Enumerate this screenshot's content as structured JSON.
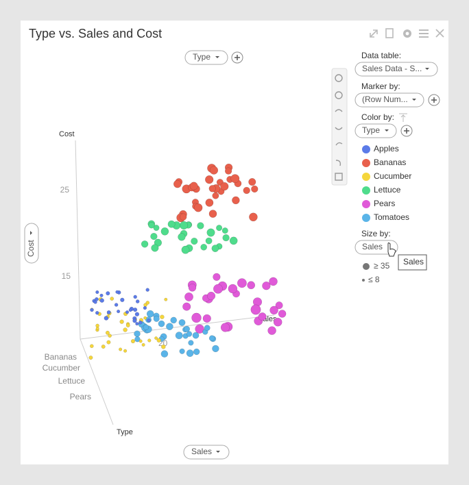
{
  "title": "Type vs. Sales and Cost",
  "axis_selectors": {
    "top": "Type",
    "left": "Cost",
    "bottom": "Sales"
  },
  "axis_labels": {
    "cost": "Cost",
    "sales": "Sales",
    "type": "Type"
  },
  "cost_ticks": [
    "25",
    "15"
  ],
  "sales_tick": "20",
  "type_ticks": [
    "Bananas",
    "Cucumber",
    "Lettuce",
    "Pears"
  ],
  "panel": {
    "data_table_label": "Data table:",
    "data_table_value": "Sales Data - S...",
    "marker_by_label": "Marker by:",
    "marker_by_value": "(Row Num...",
    "color_by_label": "Color by:",
    "color_by_value": "Type",
    "legend": [
      {
        "name": "Apples",
        "color": "#5b7be8"
      },
      {
        "name": "Bananas",
        "color": "#e8604c"
      },
      {
        "name": "Cucumber",
        "color": "#f5d63c"
      },
      {
        "name": "Lettuce",
        "color": "#4fdc8c"
      },
      {
        "name": "Pears",
        "color": "#e05ad8"
      },
      {
        "name": "Tomatoes",
        "color": "#5ab4e8"
      }
    ],
    "size_by_label": "Size by:",
    "size_by_value": "Sales",
    "size_max": "≥ 35",
    "size_min": "≤ 8",
    "tooltip": "Sales"
  }
}
